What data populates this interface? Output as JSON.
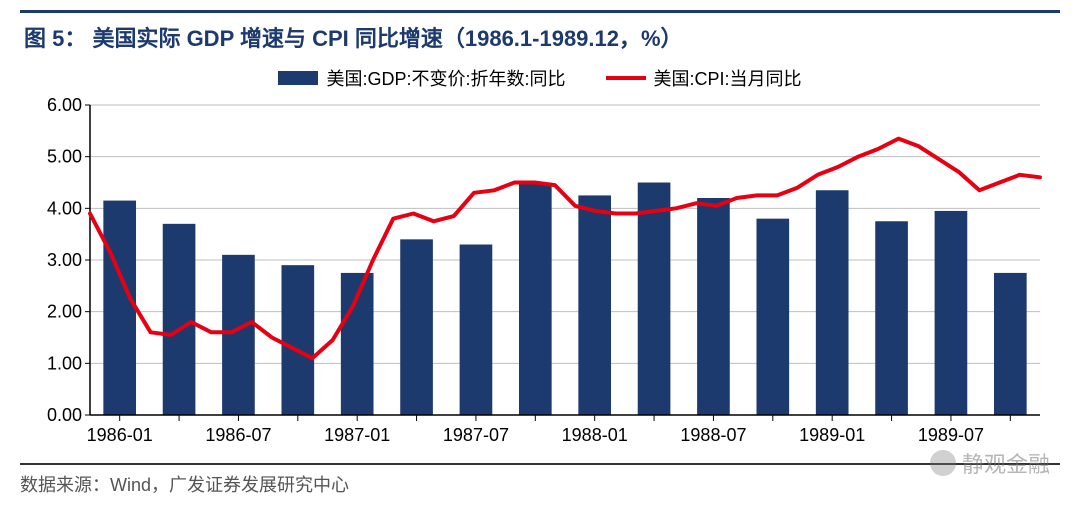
{
  "title": "图 5：  美国实际 GDP 增速与 CPI 同比增速（1986.1-1989.12，%）",
  "source": "数据来源：Wind，广发证券发展研究中心",
  "watermark": "静观金融",
  "legend": {
    "bar_label": "美国:GDP:不变价:折年数:同比",
    "line_label": "美国:CPI:当月同比"
  },
  "chart": {
    "type": "bar+line",
    "background_color": "#ffffff",
    "grid_color": "#bfbfbf",
    "axis_color": "#000000",
    "bar_color": "#1c3a6e",
    "line_color": "#e60012",
    "line_width": 4,
    "bar_width": 0.55,
    "ymin": 0.0,
    "ymax": 6.0,
    "ytick_step": 1.0,
    "ytick_format": "0.00",
    "yticks": [
      "0.00",
      "1.00",
      "2.00",
      "3.00",
      "4.00",
      "5.00",
      "6.00"
    ],
    "x_tick_labels": [
      "1986-01",
      "1986-07",
      "1987-01",
      "1987-07",
      "1988-01",
      "1988-07",
      "1989-01",
      "1989-07"
    ],
    "x_tick_positions": [
      0,
      2,
      4,
      6,
      8,
      10,
      12,
      14
    ],
    "label_fontsize": 18,
    "bars": {
      "count": 16,
      "values": [
        4.15,
        3.7,
        3.1,
        2.9,
        2.75,
        3.4,
        3.3,
        4.5,
        4.25,
        4.5,
        4.2,
        3.8,
        4.35,
        3.75,
        3.95,
        2.75
      ]
    },
    "line": {
      "count": 48,
      "values": [
        3.9,
        3.15,
        2.25,
        1.6,
        1.55,
        1.8,
        1.6,
        1.6,
        1.8,
        1.5,
        1.3,
        1.1,
        1.45,
        2.1,
        3.0,
        3.8,
        3.9,
        3.75,
        3.85,
        4.3,
        4.35,
        4.5,
        4.5,
        4.45,
        4.05,
        3.95,
        3.9,
        3.9,
        3.95,
        4.0,
        4.1,
        4.05,
        4.2,
        4.25,
        4.25,
        4.4,
        4.65,
        4.8,
        5.0,
        5.15,
        5.35,
        5.2,
        4.95,
        4.7,
        4.35,
        4.5,
        4.65,
        4.6
      ]
    }
  }
}
